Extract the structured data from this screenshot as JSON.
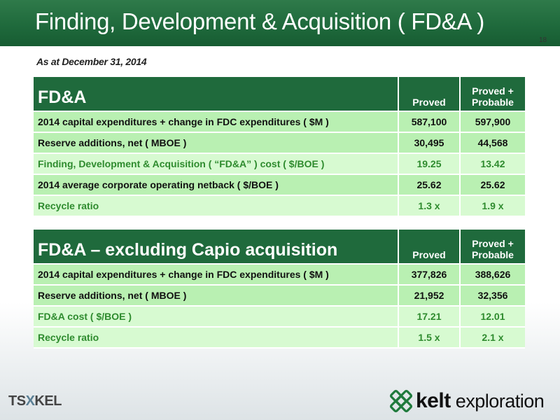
{
  "header": {
    "title": "Finding, Development & Acquisition ( FD&A )",
    "page_number": "18"
  },
  "subtitle": "As at December 31, 2014",
  "table1": {
    "title": "FD&A",
    "col1": "Proved",
    "col2": "Proved + Probable",
    "rows": [
      {
        "label": "2014 capital expenditures + change in FDC expenditures ( $M )",
        "proved": "587,100",
        "probable": "597,900"
      },
      {
        "label": "Reserve additions, net ( MBOE )",
        "proved": "30,495",
        "probable": "44,568"
      },
      {
        "label": "Finding, Development & Acquisition ( “FD&A” ) cost ( $/BOE )",
        "proved": "19.25",
        "probable": "13.42"
      },
      {
        "label": "2014 average corporate operating netback ( $/BOE )",
        "proved": "25.62",
        "probable": "25.62"
      },
      {
        "label": "Recycle ratio",
        "proved": "1.3 x",
        "probable": "1.9 x"
      }
    ]
  },
  "table2": {
    "title": "FD&A – excluding Capio acquisition",
    "col1": "Proved",
    "col2": "Proved + Probable",
    "rows": [
      {
        "label": "2014 capital expenditures + change in FDC expenditures ( $M )",
        "proved": "377,826",
        "probable": "388,626"
      },
      {
        "label": "Reserve additions, net ( MBOE )",
        "proved": "21,952",
        "probable": "32,356"
      },
      {
        "label": "FD&A cost ( $/BOE )",
        "proved": "17.21",
        "probable": "12.01"
      },
      {
        "label": "Recycle ratio",
        "proved": "1.5 x",
        "probable": "2.1 x"
      }
    ]
  },
  "footer": {
    "tsx_prefix": "TS",
    "tsx_x": "X",
    "tsx_suffix": "KEL",
    "brand_bold": "kelt",
    "brand_rest": " exploration"
  },
  "colors": {
    "header_green": "#1f6a3c",
    "row_dark": "#b9f0b2",
    "row_light": "#d7fad1",
    "light_text": "#2e8b2e"
  }
}
